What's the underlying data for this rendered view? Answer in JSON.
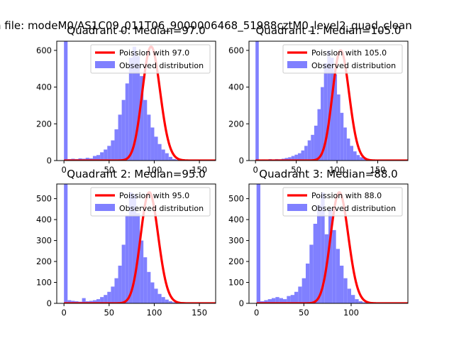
{
  "figure": {
    "suptitle": "n file: modeM0/AS1C09_011T06_9000006468_51988cztM0_level2_quad_clean"
  },
  "colors": {
    "poisson": "#ff0000",
    "observed": "#8080ff",
    "axes": "#000000"
  },
  "chart_data": [
    {
      "type": "bar",
      "title": "Quadrant 0: Median=97.0",
      "median": 97.0,
      "xlim": [
        -8,
        168
      ],
      "ylim": [
        0,
        650
      ],
      "xticks": [
        0,
        50,
        100,
        150
      ],
      "yticks": [
        0,
        200,
        400,
        600
      ],
      "legend": [
        "Poission with 97.0",
        "Observed distribution"
      ],
      "legend_position": "upper-right",
      "hist": {
        "bin_start": 0,
        "bin_width": 4,
        "counts": [
          650,
          8,
          10,
          8,
          12,
          10,
          15,
          12,
          25,
          30,
          45,
          60,
          80,
          110,
          170,
          250,
          330,
          420,
          560,
          620,
          570,
          460,
          330,
          250,
          180,
          130,
          90,
          60,
          40,
          20,
          8,
          5,
          3,
          0,
          0,
          0,
          0,
          0,
          0,
          0
        ]
      }
    },
    {
      "type": "bar",
      "title": "Quadrant 1: Median=105.0",
      "median": 105.0,
      "xlim": [
        -8,
        187
      ],
      "ylim": [
        0,
        650
      ],
      "xticks": [
        0,
        50,
        100,
        150
      ],
      "yticks": [
        0,
        200,
        400,
        600
      ],
      "legend": [
        "Poission with 105.0",
        "Observed distribution"
      ],
      "legend_position": "upper-right",
      "hist": {
        "bin_start": 0,
        "bin_width": 4,
        "counts": [
          650,
          5,
          6,
          5,
          8,
          6,
          8,
          7,
          10,
          14,
          18,
          25,
          32,
          40,
          55,
          80,
          110,
          140,
          190,
          280,
          400,
          530,
          600,
          560,
          470,
          360,
          260,
          180,
          120,
          80,
          50,
          30,
          18,
          10,
          6,
          4,
          2,
          0,
          0,
          0,
          0,
          0,
          0,
          0,
          0
        ]
      }
    },
    {
      "type": "bar",
      "title": "Quadrant 2: Median=95.0",
      "median": 95.0,
      "xlim": [
        -8,
        168
      ],
      "ylim": [
        0,
        570
      ],
      "xticks": [
        0,
        50,
        100,
        150
      ],
      "yticks": [
        0,
        100,
        200,
        300,
        400,
        500
      ],
      "legend": [
        "Poission with 95.0",
        "Observed distribution"
      ],
      "legend_position": "upper-right",
      "hist": {
        "bin_start": 0,
        "bin_width": 4,
        "counts": [
          570,
          15,
          12,
          10,
          8,
          25,
          10,
          12,
          15,
          20,
          30,
          40,
          55,
          80,
          120,
          180,
          280,
          420,
          530,
          520,
          430,
          300,
          220,
          150,
          100,
          70,
          45,
          30,
          18,
          10,
          5,
          3,
          0,
          0,
          0,
          0,
          0,
          0,
          0,
          0
        ]
      }
    },
    {
      "type": "bar",
      "title": "Quadrant 3: Median=88.0",
      "median": 88.0,
      "xlim": [
        -8,
        160
      ],
      "ylim": [
        0,
        570
      ],
      "xticks": [
        0,
        50,
        100
      ],
      "yticks": [
        0,
        100,
        200,
        300,
        400,
        500
      ],
      "legend": [
        "Poission with 88.0",
        "Observed distribution"
      ],
      "legend_position": "upper-right",
      "hist": {
        "bin_start": 0,
        "bin_width": 4,
        "counts": [
          570,
          10,
          15,
          20,
          25,
          30,
          25,
          20,
          35,
          40,
          55,
          80,
          120,
          190,
          280,
          380,
          470,
          530,
          330,
          450,
          350,
          260,
          180,
          120,
          70,
          40,
          20,
          10,
          5,
          3,
          2,
          0,
          0,
          0,
          0
        ]
      }
    }
  ]
}
